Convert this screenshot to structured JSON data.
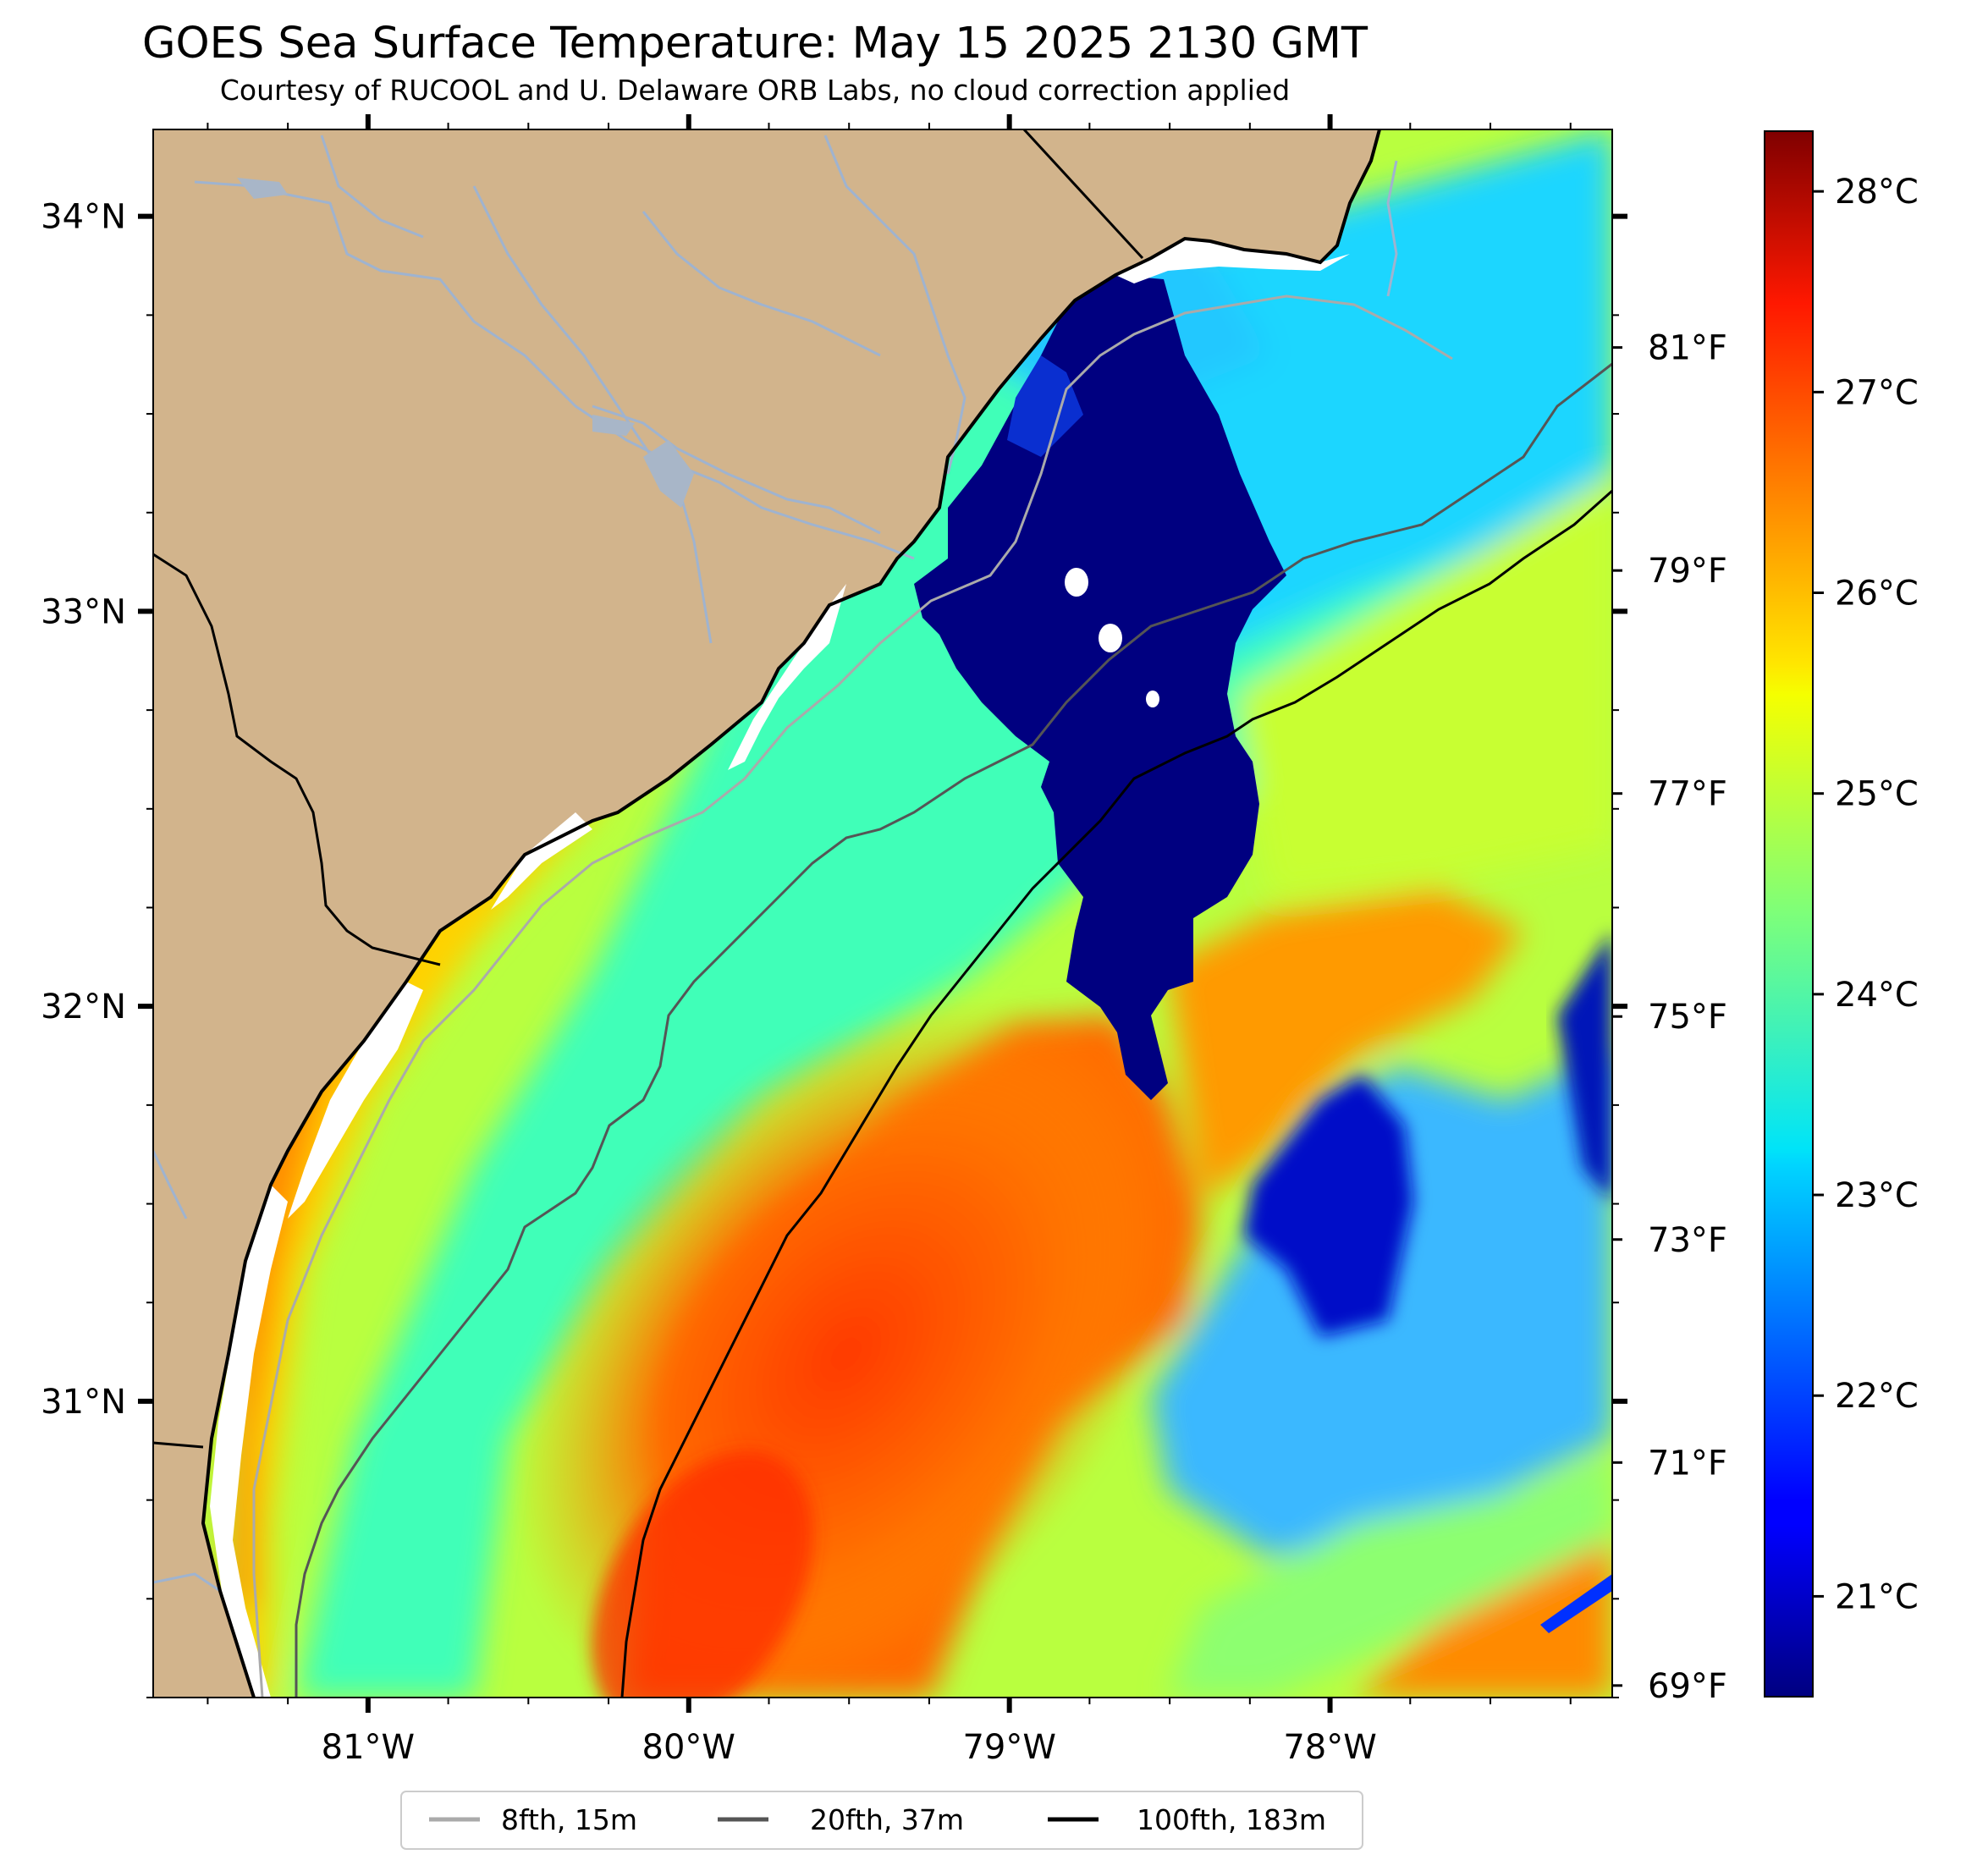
{
  "title": "GOES Sea Surface Temperature: May 15 2025 2130 GMT",
  "subtitle": "Courtesy of RUCOOL and U. Delaware ORB Labs, no cloud correction applied",
  "map": {
    "lon_range": [
      -81.67,
      -77.12
    ],
    "lat_range": [
      30.25,
      34.22
    ],
    "lon_ticks": [
      {
        "value": -81,
        "label": "81°W"
      },
      {
        "value": -80,
        "label": "80°W"
      },
      {
        "value": -79,
        "label": "79°W"
      },
      {
        "value": -78,
        "label": "78°W"
      }
    ],
    "lat_ticks": [
      {
        "value": 34,
        "label": "34°N"
      },
      {
        "value": 33,
        "label": "33°N"
      },
      {
        "value": 32,
        "label": "32°N"
      },
      {
        "value": 31,
        "label": "31°N"
      }
    ],
    "colors": {
      "land": "#d2b48c",
      "coast_gap": "#ffffff",
      "rivers": "#9fb3cf",
      "coastline": "#000000",
      "cloud_mask": "#000080"
    }
  },
  "colorbar": {
    "colormap": "jet",
    "celsius_range": [
      20.5,
      28.3
    ],
    "celsius_ticks": [
      {
        "value": 21,
        "label": "21°C"
      },
      {
        "value": 22,
        "label": "22°C"
      },
      {
        "value": 23,
        "label": "23°C"
      },
      {
        "value": 24,
        "label": "24°C"
      },
      {
        "value": 25,
        "label": "25°C"
      },
      {
        "value": 26,
        "label": "26°C"
      },
      {
        "value": 27,
        "label": "27°C"
      },
      {
        "value": 28,
        "label": "28°C"
      }
    ],
    "fahrenheit_ticks": [
      {
        "value": 69,
        "label": "69°F"
      },
      {
        "value": 71,
        "label": "71°F"
      },
      {
        "value": 73,
        "label": "73°F"
      },
      {
        "value": 75,
        "label": "75°F"
      },
      {
        "value": 77,
        "label": "77°F"
      },
      {
        "value": 79,
        "label": "79°F"
      },
      {
        "value": 81,
        "label": "81°F"
      }
    ]
  },
  "legend": {
    "items": [
      {
        "label": "8fth, 15m",
        "color": "#aaaaaa"
      },
      {
        "label": "20fth, 37m",
        "color": "#555555"
      },
      {
        "label": "100fth, 183m",
        "color": "#000000"
      }
    ]
  }
}
